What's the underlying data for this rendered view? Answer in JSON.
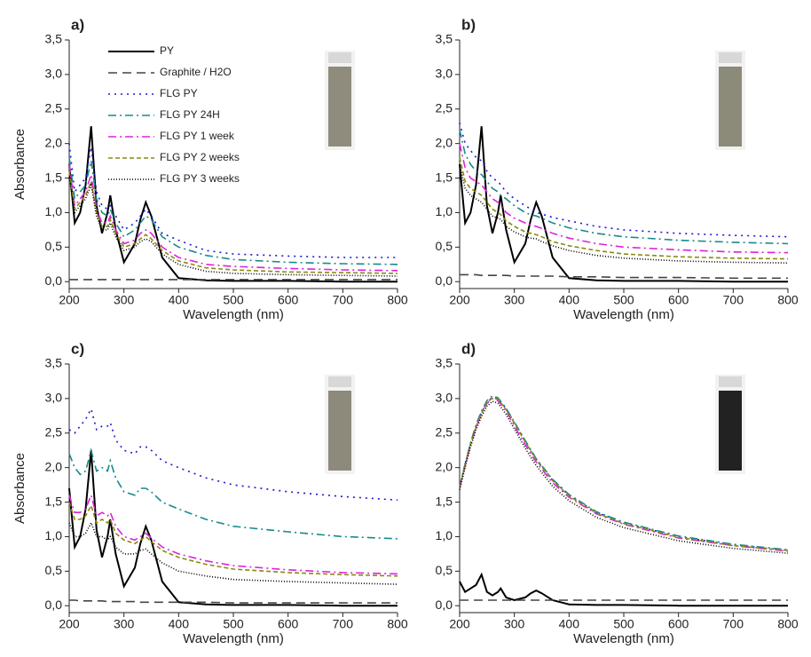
{
  "chart_data": [
    {
      "type": "line",
      "title": "a)",
      "x_label": "Wavelength (nm)",
      "y_label": "Absorbance",
      "legend": "top-left",
      "x": [
        200,
        210,
        220,
        230,
        240,
        250,
        260,
        270,
        275,
        285,
        300,
        320,
        330,
        340,
        350,
        370,
        400,
        450,
        500,
        600,
        700,
        800
      ],
      "xlim": [
        200,
        800
      ],
      "xticks": [
        200,
        300,
        400,
        500,
        600,
        700,
        800
      ],
      "ylim": [
        -0.1,
        3.5
      ],
      "yticks": [
        {
          "value": 0,
          "label": "0,0"
        },
        {
          "value": 0.5,
          "label": "0,5"
        },
        {
          "value": 1,
          "label": "1,0"
        },
        {
          "value": 1.5,
          "label": "1,5"
        },
        {
          "value": 2,
          "label": "2,0"
        },
        {
          "value": 2.5,
          "label": "2,5"
        },
        {
          "value": 3,
          "label": "3,0"
        },
        {
          "value": 3.5,
          "label": "3,5"
        }
      ],
      "series": [
        {
          "name": "PY",
          "color": "#000000",
          "dash": "solid",
          "values": [
            1.7,
            0.85,
            1.0,
            1.4,
            2.25,
            1.1,
            0.7,
            1.0,
            1.25,
            0.75,
            0.28,
            0.55,
            0.9,
            1.15,
            0.95,
            0.35,
            0.05,
            0.02,
            0.01,
            0.01,
            0.0,
            0.0
          ]
        },
        {
          "name": "Graphite / H2O",
          "color": "#444444",
          "dash": "dashed",
          "values": [
            0.03,
            0.03,
            0.03,
            0.03,
            0.03,
            0.03,
            0.03,
            0.03,
            0.03,
            0.03,
            0.03,
            0.03,
            0.03,
            0.03,
            0.03,
            0.03,
            0.03,
            0.03,
            0.03,
            0.03,
            0.03,
            0.03
          ]
        },
        {
          "name": "FLG PY",
          "color": "#1a1ad0",
          "dash": "dotted",
          "values": [
            2.0,
            1.3,
            1.4,
            1.5,
            1.95,
            1.3,
            1.1,
            1.05,
            1.1,
            0.95,
            0.75,
            0.85,
            0.95,
            1.05,
            0.95,
            0.7,
            0.6,
            0.45,
            0.4,
            0.37,
            0.35,
            0.35
          ]
        },
        {
          "name": "FLG PY 24H",
          "color": "#1a8a8a",
          "dash": "dashdot",
          "values": [
            1.8,
            1.2,
            1.3,
            1.4,
            1.75,
            1.2,
            1.0,
            0.95,
            1.05,
            0.85,
            0.65,
            0.75,
            0.85,
            0.95,
            0.9,
            0.65,
            0.5,
            0.38,
            0.32,
            0.28,
            0.26,
            0.25
          ]
        },
        {
          "name": "FLG PY 1 week",
          "color": "#e020e0",
          "dash": "dashdot",
          "values": [
            1.7,
            1.1,
            1.2,
            1.3,
            1.55,
            1.05,
            0.85,
            0.85,
            0.95,
            0.75,
            0.55,
            0.6,
            0.7,
            0.75,
            0.7,
            0.5,
            0.35,
            0.25,
            0.22,
            0.19,
            0.17,
            0.16
          ]
        },
        {
          "name": "FLG PY 2 weeks",
          "color": "#8a8a10",
          "dash": "shortdash",
          "values": [
            1.6,
            1.05,
            1.15,
            1.25,
            1.45,
            1.0,
            0.8,
            0.8,
            0.9,
            0.7,
            0.5,
            0.55,
            0.62,
            0.68,
            0.62,
            0.45,
            0.3,
            0.2,
            0.17,
            0.14,
            0.13,
            0.12
          ]
        },
        {
          "name": "FLG PY 3 weeks",
          "color": "#000000",
          "dash": "finedot",
          "values": [
            1.5,
            1.0,
            1.1,
            1.2,
            1.4,
            0.95,
            0.75,
            0.75,
            0.85,
            0.65,
            0.45,
            0.5,
            0.58,
            0.62,
            0.58,
            0.4,
            0.25,
            0.15,
            0.12,
            0.1,
            0.09,
            0.08
          ]
        }
      ]
    },
    {
      "type": "line",
      "title": "b)",
      "x_label": "Wavelength (nm)",
      "x": [
        200,
        210,
        220,
        230,
        240,
        250,
        260,
        270,
        275,
        285,
        300,
        320,
        330,
        340,
        350,
        370,
        400,
        450,
        500,
        600,
        700,
        800
      ],
      "xlim": [
        200,
        800
      ],
      "xticks": [
        200,
        300,
        400,
        500,
        600,
        700,
        800
      ],
      "ylim": [
        -0.1,
        3.5
      ],
      "yticks": [
        {
          "value": 0,
          "label": "0,0"
        },
        {
          "value": 0.5,
          "label": "0,5"
        },
        {
          "value": 1,
          "label": "1,0"
        },
        {
          "value": 1.5,
          "label": "1,5"
        },
        {
          "value": 2,
          "label": "2,0"
        },
        {
          "value": 2.5,
          "label": "2,5"
        },
        {
          "value": 3,
          "label": "3,0"
        },
        {
          "value": 3.5,
          "label": "3,5"
        }
      ],
      "series": [
        {
          "color": "#000000",
          "dash": "solid",
          "values": [
            1.7,
            0.85,
            1.0,
            1.4,
            2.25,
            1.1,
            0.7,
            1.0,
            1.25,
            0.75,
            0.28,
            0.55,
            0.9,
            1.15,
            0.95,
            0.35,
            0.05,
            0.02,
            0.01,
            0.01,
            0.0,
            0.0
          ]
        },
        {
          "color": "#444444",
          "dash": "dashed",
          "values": [
            0.1,
            0.1,
            0.1,
            0.1,
            0.09,
            0.09,
            0.09,
            0.09,
            0.09,
            0.09,
            0.08,
            0.08,
            0.08,
            0.08,
            0.08,
            0.08,
            0.07,
            0.07,
            0.06,
            0.06,
            0.05,
            0.05
          ]
        },
        {
          "color": "#1a1ad0",
          "dash": "dotted",
          "values": [
            2.3,
            2.0,
            1.9,
            1.8,
            1.75,
            1.6,
            1.5,
            1.45,
            1.4,
            1.3,
            1.2,
            1.1,
            1.05,
            1.0,
            0.98,
            0.93,
            0.88,
            0.8,
            0.75,
            0.7,
            0.67,
            0.65
          ]
        },
        {
          "color": "#1a8a8a",
          "dash": "dashdot",
          "values": [
            2.2,
            1.85,
            1.7,
            1.6,
            1.55,
            1.45,
            1.35,
            1.3,
            1.25,
            1.2,
            1.1,
            1.0,
            0.97,
            0.95,
            0.92,
            0.85,
            0.78,
            0.7,
            0.65,
            0.6,
            0.57,
            0.55
          ]
        },
        {
          "color": "#e020e0",
          "dash": "dashdot",
          "values": [
            2.0,
            1.65,
            1.5,
            1.45,
            1.4,
            1.3,
            1.2,
            1.15,
            1.1,
            1.0,
            0.92,
            0.85,
            0.82,
            0.8,
            0.77,
            0.7,
            0.63,
            0.55,
            0.5,
            0.46,
            0.43,
            0.42
          ]
        },
        {
          "color": "#8a8a10",
          "dash": "shortdash",
          "values": [
            1.8,
            1.45,
            1.35,
            1.3,
            1.25,
            1.15,
            1.05,
            1.0,
            0.97,
            0.88,
            0.8,
            0.72,
            0.7,
            0.68,
            0.65,
            0.58,
            0.52,
            0.45,
            0.4,
            0.36,
            0.34,
            0.33
          ]
        },
        {
          "color": "#000000",
          "dash": "finedot",
          "values": [
            1.7,
            1.35,
            1.25,
            1.2,
            1.15,
            1.05,
            0.95,
            0.92,
            0.9,
            0.8,
            0.72,
            0.65,
            0.63,
            0.62,
            0.58,
            0.52,
            0.45,
            0.38,
            0.34,
            0.3,
            0.28,
            0.27
          ]
        }
      ]
    },
    {
      "type": "line",
      "title": "c)",
      "x_label": "Wavelength (nm)",
      "y_label": "Absorbance",
      "x": [
        200,
        210,
        220,
        230,
        240,
        250,
        260,
        270,
        275,
        285,
        300,
        320,
        330,
        340,
        350,
        370,
        400,
        450,
        500,
        600,
        700,
        800
      ],
      "xlim": [
        200,
        800
      ],
      "xticks": [
        200,
        300,
        400,
        500,
        600,
        700,
        800
      ],
      "ylim": [
        -0.1,
        3.5
      ],
      "yticks": [
        {
          "value": 0,
          "label": "0,0"
        },
        {
          "value": 0.5,
          "label": "0,5"
        },
        {
          "value": 1,
          "label": "1,0"
        },
        {
          "value": 1.5,
          "label": "1,5"
        },
        {
          "value": 2,
          "label": "2,0"
        },
        {
          "value": 2.5,
          "label": "2,5"
        },
        {
          "value": 3,
          "label": "3,0"
        },
        {
          "value": 3.5,
          "label": "3,5"
        }
      ],
      "series": [
        {
          "color": "#000000",
          "dash": "solid",
          "values": [
            1.7,
            0.85,
            1.0,
            1.4,
            2.25,
            1.1,
            0.7,
            1.0,
            1.25,
            0.75,
            0.28,
            0.55,
            0.9,
            1.15,
            0.95,
            0.35,
            0.05,
            0.02,
            0.01,
            0.01,
            0.0,
            0.0
          ]
        },
        {
          "color": "#444444",
          "dash": "dashed",
          "values": [
            0.08,
            0.08,
            0.07,
            0.07,
            0.07,
            0.07,
            0.07,
            0.06,
            0.06,
            0.06,
            0.06,
            0.06,
            0.05,
            0.05,
            0.05,
            0.05,
            0.05,
            0.05,
            0.04,
            0.04,
            0.04,
            0.04
          ]
        },
        {
          "color": "#1a1ad0",
          "dash": "dotted",
          "values": [
            2.55,
            2.5,
            2.6,
            2.7,
            2.85,
            2.55,
            2.6,
            2.6,
            2.65,
            2.4,
            2.25,
            2.2,
            2.3,
            2.3,
            2.25,
            2.1,
            2.0,
            1.85,
            1.75,
            1.65,
            1.58,
            1.53
          ]
        },
        {
          "color": "#1a8a8a",
          "dash": "dashdot",
          "values": [
            2.2,
            2.0,
            1.9,
            1.95,
            2.25,
            1.95,
            2.0,
            1.95,
            2.1,
            1.85,
            1.65,
            1.6,
            1.7,
            1.7,
            1.65,
            1.5,
            1.4,
            1.25,
            1.15,
            1.07,
            1.0,
            0.97
          ]
        },
        {
          "color": "#e020e0",
          "dash": "dashdot",
          "values": [
            1.6,
            1.35,
            1.35,
            1.4,
            1.6,
            1.3,
            1.35,
            1.3,
            1.35,
            1.15,
            1.0,
            0.95,
            1.0,
            1.05,
            0.98,
            0.85,
            0.75,
            0.65,
            0.58,
            0.52,
            0.48,
            0.46
          ]
        },
        {
          "color": "#8a8a10",
          "dash": "shortdash",
          "values": [
            1.5,
            1.25,
            1.25,
            1.3,
            1.45,
            1.2,
            1.25,
            1.2,
            1.25,
            1.05,
            0.95,
            0.9,
            0.95,
            1.0,
            0.93,
            0.8,
            0.7,
            0.6,
            0.53,
            0.48,
            0.45,
            0.43
          ]
        },
        {
          "color": "#000000",
          "dash": "finedot",
          "values": [
            1.2,
            1.0,
            1.0,
            1.05,
            1.2,
            1.0,
            1.0,
            0.95,
            1.0,
            0.85,
            0.75,
            0.75,
            0.8,
            0.82,
            0.75,
            0.62,
            0.5,
            0.43,
            0.38,
            0.35,
            0.33,
            0.31
          ]
        }
      ]
    },
    {
      "type": "line",
      "title": "d)",
      "x_label": "Wavelength (nm)",
      "x": [
        200,
        210,
        220,
        230,
        240,
        250,
        260,
        270,
        275,
        285,
        300,
        320,
        330,
        340,
        350,
        370,
        400,
        450,
        500,
        600,
        700,
        800
      ],
      "xlim": [
        200,
        800
      ],
      "xticks": [
        200,
        300,
        400,
        500,
        600,
        700,
        800
      ],
      "ylim": [
        -0.1,
        3.5
      ],
      "yticks": [
        {
          "value": 0,
          "label": "0,0"
        },
        {
          "value": 0.5,
          "label": "0,5"
        },
        {
          "value": 1,
          "label": "1,0"
        },
        {
          "value": 1.5,
          "label": "1,5"
        },
        {
          "value": 2,
          "label": "2,0"
        },
        {
          "value": 2.5,
          "label": "2,5"
        },
        {
          "value": 3,
          "label": "3,0"
        },
        {
          "value": 3.5,
          "label": "3,5"
        }
      ],
      "series": [
        {
          "color": "#000000",
          "dash": "solid",
          "values": [
            0.35,
            0.2,
            0.25,
            0.3,
            0.45,
            0.2,
            0.15,
            0.2,
            0.25,
            0.12,
            0.08,
            0.12,
            0.18,
            0.22,
            0.18,
            0.08,
            0.02,
            0.01,
            0.01,
            0.0,
            0.0,
            0.0
          ]
        },
        {
          "color": "#444444",
          "dash": "dashed",
          "values": [
            0.08,
            0.08,
            0.08,
            0.08,
            0.08,
            0.08,
            0.08,
            0.08,
            0.08,
            0.08,
            0.08,
            0.08,
            0.08,
            0.08,
            0.08,
            0.08,
            0.08,
            0.08,
            0.08,
            0.08,
            0.08,
            0.08
          ]
        },
        {
          "color": "#1a1ad0",
          "dash": "dotted",
          "values": [
            1.72,
            2.05,
            2.35,
            2.6,
            2.8,
            2.95,
            3.02,
            3.0,
            2.95,
            2.85,
            2.65,
            2.38,
            2.25,
            2.12,
            2.02,
            1.82,
            1.6,
            1.35,
            1.2,
            1.0,
            0.88,
            0.8
          ]
        },
        {
          "color": "#1a8a8a",
          "dash": "dashdot",
          "values": [
            1.72,
            2.06,
            2.36,
            2.62,
            2.82,
            2.97,
            3.04,
            3.01,
            2.96,
            2.86,
            2.66,
            2.39,
            2.26,
            2.13,
            2.03,
            1.83,
            1.61,
            1.36,
            1.21,
            1.01,
            0.89,
            0.81
          ]
        },
        {
          "color": "#e020e0",
          "dash": "dashdot",
          "values": [
            1.7,
            2.03,
            2.33,
            2.58,
            2.78,
            2.93,
            3.0,
            2.97,
            2.92,
            2.82,
            2.6,
            2.33,
            2.2,
            2.08,
            1.98,
            1.78,
            1.57,
            1.33,
            1.18,
            0.98,
            0.87,
            0.79
          ]
        },
        {
          "color": "#8a8a10",
          "dash": "shortdash",
          "values": [
            1.71,
            2.04,
            2.34,
            2.59,
            2.79,
            2.94,
            3.01,
            2.99,
            2.94,
            2.84,
            2.64,
            2.37,
            2.24,
            2.11,
            2.01,
            1.81,
            1.59,
            1.34,
            1.19,
            0.99,
            0.87,
            0.8
          ]
        },
        {
          "color": "#000000",
          "dash": "finedot",
          "values": [
            1.68,
            2.0,
            2.3,
            2.55,
            2.74,
            2.89,
            2.96,
            2.93,
            2.88,
            2.77,
            2.56,
            2.28,
            2.15,
            2.03,
            1.93,
            1.73,
            1.52,
            1.28,
            1.13,
            0.94,
            0.83,
            0.76
          ]
        }
      ]
    }
  ]
}
